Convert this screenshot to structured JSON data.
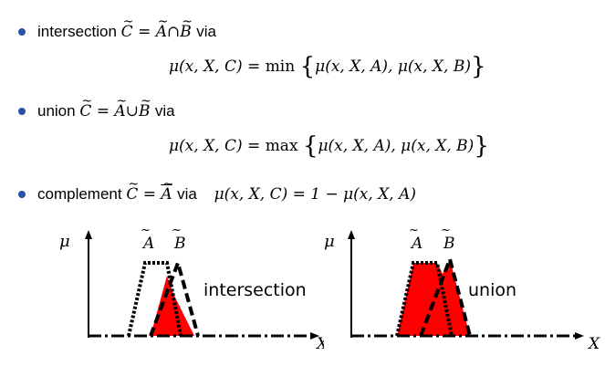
{
  "items": [
    {
      "word": "intersection",
      "expr_lhs": "C",
      "expr_eq": "=",
      "expr_a": "A",
      "op": "∩",
      "expr_b": "B",
      "via": "via",
      "formula": {
        "lhs": "μ(x, X, C) = ",
        "fn": "min",
        "args": "μ(x, X, A), μ(x, X, B)"
      }
    },
    {
      "word": "union",
      "expr_lhs": "C",
      "expr_eq": "=",
      "expr_a": "A",
      "op": "∪",
      "expr_b": "B",
      "via": "via",
      "formula": {
        "lhs": "μ(x, X, C) = ",
        "fn": "max",
        "args": "μ(x, X, A), μ(x, X, B)"
      }
    },
    {
      "word": "complement",
      "expr_lhs": "C",
      "expr_eq": "=",
      "expr_a": "A",
      "via": "via",
      "formula_inline": "μ(x, X, C) = 1 − μ(x, X, A)"
    }
  ],
  "plots": [
    {
      "ylabel": "μ",
      "label_a": "A",
      "label_b": "B",
      "caption": "intersection",
      "xlabel": "X",
      "fill_color": "#ff0000"
    },
    {
      "ylabel": "μ",
      "label_a": "A",
      "label_b": "B",
      "caption": "union",
      "xlabel": "X",
      "fill_color": "#ff0000"
    }
  ]
}
